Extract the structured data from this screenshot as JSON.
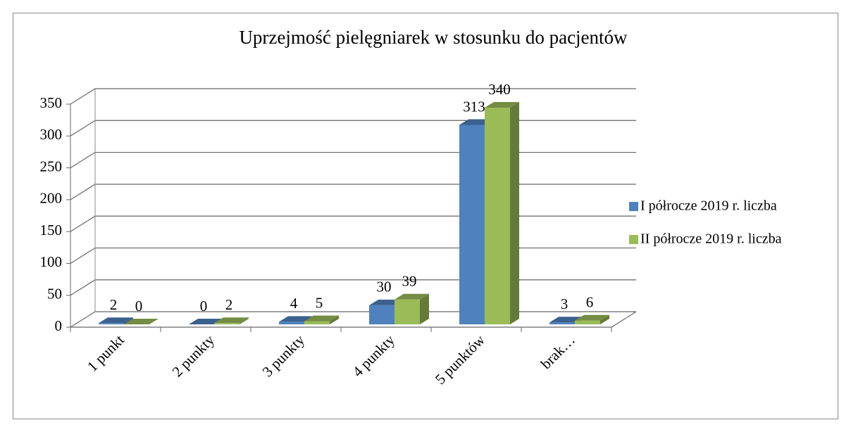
{
  "chart_data": {
    "type": "bar3d",
    "title": "Uprzejmość pielęgniarek w stosunku do pacjentów",
    "categories": [
      "1 punkt",
      "2 punkty",
      "3 punkty",
      "4 punkty",
      "5 punktów",
      "brak…"
    ],
    "series": [
      {
        "name": "I półrocze 2019 r. liczba",
        "color": "#4f81bd",
        "values": [
          2,
          0,
          4,
          30,
          313,
          3
        ]
      },
      {
        "name": "II półrocze 2019 r. liczba",
        "color": "#9bbb59",
        "values": [
          0,
          2,
          5,
          39,
          340,
          6
        ]
      }
    ],
    "ylim": [
      0,
      350
    ],
    "yticks": [
      0,
      50,
      100,
      150,
      200,
      250,
      300,
      350
    ],
    "grid": true,
    "legend": "right"
  }
}
